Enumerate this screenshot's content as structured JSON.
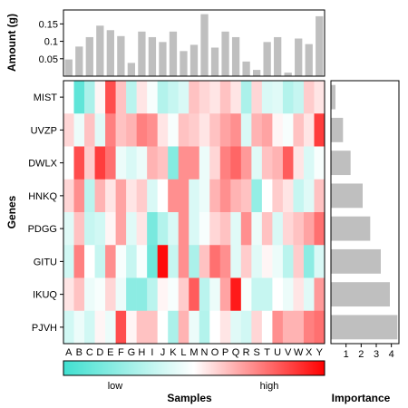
{
  "chart_data": [
    {
      "type": "bar",
      "role": "top-marginal",
      "ylabel": "Amount (g)",
      "categories": [
        "A",
        "B",
        "C",
        "D",
        "E",
        "F",
        "G",
        "H",
        "I",
        "J",
        "K",
        "L",
        "M",
        "N",
        "O",
        "P",
        "Q",
        "R",
        "S",
        "T",
        "U",
        "V",
        "W",
        "X",
        "Y"
      ],
      "values": [
        0.048,
        0.085,
        0.112,
        0.145,
        0.132,
        0.115,
        0.038,
        0.128,
        0.112,
        0.098,
        0.128,
        0.072,
        0.09,
        0.178,
        0.082,
        0.128,
        0.112,
        0.042,
        0.018,
        0.098,
        0.112,
        0.01,
        0.108,
        0.092,
        0.172
      ],
      "yticks": [
        "0.05",
        "0.1",
        "0.15"
      ],
      "ytick_values": [
        0.05,
        0.1,
        0.15
      ],
      "ylim": [
        0,
        0.19
      ]
    },
    {
      "type": "heatmap",
      "role": "main",
      "ylabel": "Genes",
      "xlabel": "Samples",
      "rows": [
        "MIST",
        "UVZP",
        "DWLX",
        "HNKQ",
        "PDGG",
        "GITU",
        "IKUQ",
        "PJVH"
      ],
      "columns": [
        "A",
        "B",
        "C",
        "D",
        "E",
        "F",
        "G",
        "H",
        "I",
        "J",
        "K",
        "L",
        "M",
        "N",
        "O",
        "P",
        "Q",
        "R",
        "S",
        "T",
        "U",
        "V",
        "W",
        "X",
        "Y"
      ],
      "vmin": 0,
      "vmax": 1,
      "values": [
        [
          0.5,
          0.08,
          0.28,
          0.52,
          0.85,
          0.62,
          0.32,
          0.55,
          0.48,
          0.3,
          0.35,
          0.4,
          0.62,
          0.58,
          0.55,
          0.62,
          0.55,
          0.28,
          0.58,
          0.4,
          0.42,
          0.3,
          0.35,
          0.6,
          0.55
        ],
        [
          0.58,
          0.45,
          0.62,
          0.42,
          0.75,
          0.62,
          0.65,
          0.75,
          0.72,
          0.55,
          0.48,
          0.62,
          0.6,
          0.55,
          0.62,
          0.68,
          0.72,
          0.4,
          0.65,
          0.68,
          0.52,
          0.48,
          0.62,
          0.55,
          0.88
        ],
        [
          0.5,
          0.85,
          0.6,
          0.88,
          0.78,
          0.45,
          0.4,
          0.45,
          0.65,
          0.62,
          0.18,
          0.72,
          0.72,
          0.45,
          0.58,
          0.75,
          0.8,
          0.7,
          0.42,
          0.62,
          0.65,
          0.82,
          0.55,
          0.4,
          0.48
        ],
        [
          0.58,
          0.72,
          0.32,
          0.65,
          0.55,
          0.68,
          0.55,
          0.6,
          0.4,
          0.5,
          0.72,
          0.72,
          0.4,
          0.45,
          0.65,
          0.72,
          0.65,
          0.62,
          0.22,
          0.5,
          0.6,
          0.55,
          0.35,
          0.42,
          0.62
        ],
        [
          0.42,
          0.62,
          0.35,
          0.38,
          0.52,
          0.68,
          0.42,
          0.55,
          0.15,
          0.3,
          0.4,
          0.72,
          0.4,
          0.48,
          0.58,
          0.62,
          0.42,
          0.72,
          0.45,
          0.62,
          0.4,
          0.58,
          0.62,
          0.68,
          0.78
        ],
        [
          0.38,
          0.75,
          0.5,
          0.35,
          0.72,
          0.48,
          0.35,
          0.48,
          0.12,
          0.98,
          0.35,
          0.72,
          0.28,
          0.62,
          0.78,
          0.72,
          0.42,
          0.6,
          0.42,
          0.52,
          0.45,
          0.32,
          0.6,
          0.2,
          0.4
        ],
        [
          0.55,
          0.62,
          0.45,
          0.48,
          0.58,
          0.45,
          0.2,
          0.2,
          0.32,
          0.52,
          0.48,
          0.6,
          0.82,
          0.32,
          0.45,
          0.68,
          0.95,
          0.48,
          0.35,
          0.35,
          0.5,
          0.45,
          0.55,
          0.42,
          0.7
        ],
        [
          0.38,
          0.45,
          0.38,
          0.52,
          0.45,
          0.85,
          0.52,
          0.62,
          0.62,
          0.5,
          0.28,
          0.65,
          0.45,
          0.3,
          0.5,
          0.55,
          0.42,
          0.38,
          0.58,
          0.5,
          0.72,
          0.65,
          0.65,
          0.75,
          0.78
        ]
      ],
      "colormap": [
        "#40e0d0",
        "#ffffff",
        "#ff0000"
      ],
      "legend_labels": [
        "low",
        "high"
      ],
      "legend_placement": "bottom"
    },
    {
      "type": "bar",
      "orientation": "horizontal",
      "role": "right-marginal",
      "xlabel": "Importance",
      "categories": [
        "MIST",
        "UVZP",
        "DWLX",
        "HNKQ",
        "PDGG",
        "GITU",
        "IKUQ",
        "PJVH"
      ],
      "values": [
        0.3,
        0.8,
        1.3,
        2.1,
        2.6,
        3.3,
        3.9,
        4.4
      ],
      "xticks": [
        "1",
        "2",
        "3",
        "4"
      ],
      "xtick_values": [
        1,
        2,
        3,
        4
      ],
      "xlim": [
        0,
        4.5
      ]
    }
  ],
  "colors": {
    "bar": "#bfbfbf",
    "frame": "#000000"
  }
}
